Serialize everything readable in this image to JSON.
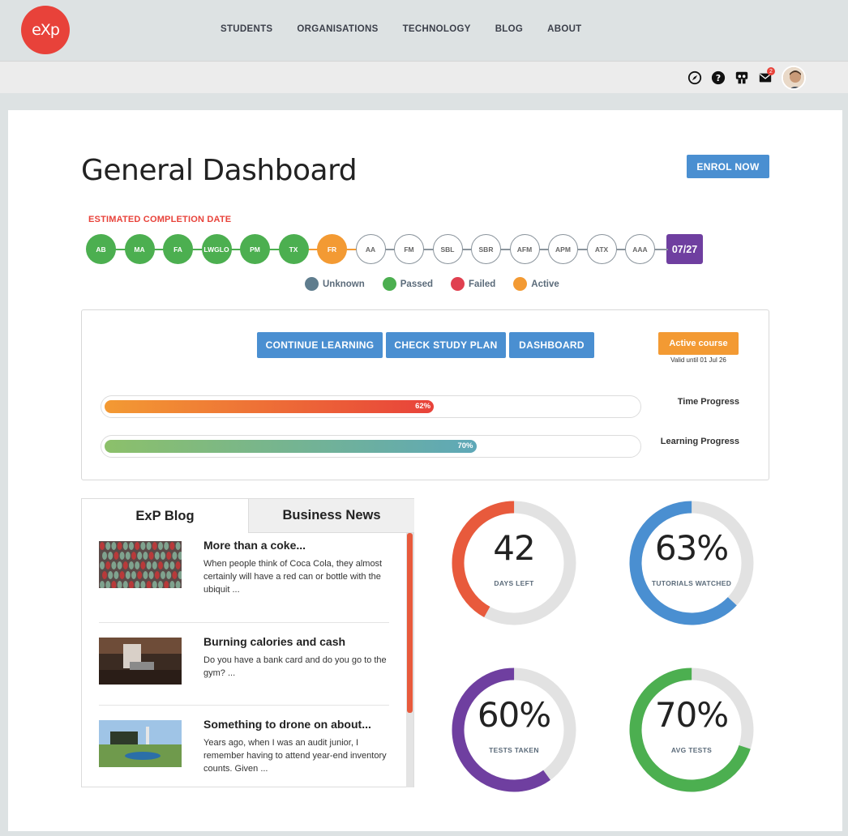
{
  "brand": {
    "logo_text": "eXp",
    "color": "#e8423a"
  },
  "nav": {
    "links": [
      "STUDENTS",
      "ORGANISATIONS",
      "TECHNOLOGY",
      "BLOG",
      "ABOUT"
    ]
  },
  "toolbar": {
    "icons": [
      "compass-icon",
      "help-icon",
      "slideshare-icon",
      "mail-icon"
    ],
    "mail_count": "2"
  },
  "page": {
    "title": "General Dashboard",
    "enrol_label": "ENROL NOW"
  },
  "completion": {
    "label": "ESTIMATED COMPLETION DATE",
    "date": "07/27",
    "modules": [
      {
        "code": "AB",
        "status": "passed"
      },
      {
        "code": "MA",
        "status": "passed"
      },
      {
        "code": "FA",
        "status": "passed"
      },
      {
        "code": "LWGLO",
        "status": "passed"
      },
      {
        "code": "PM",
        "status": "passed"
      },
      {
        "code": "TX",
        "status": "passed"
      },
      {
        "code": "FR",
        "status": "active"
      },
      {
        "code": "AA",
        "status": "unknown"
      },
      {
        "code": "FM",
        "status": "unknown"
      },
      {
        "code": "SBL",
        "status": "unknown"
      },
      {
        "code": "SBR",
        "status": "unknown"
      },
      {
        "code": "AFM",
        "status": "unknown"
      },
      {
        "code": "APM",
        "status": "unknown"
      },
      {
        "code": "ATX",
        "status": "unknown"
      },
      {
        "code": "AAA",
        "status": "unknown"
      }
    ],
    "legend": [
      {
        "label": "Unknown",
        "color": "#5f7d8e"
      },
      {
        "label": "Passed",
        "color": "#4caf50"
      },
      {
        "label": "Failed",
        "color": "#e04050"
      },
      {
        "label": "Active",
        "color": "#f39a33"
      }
    ]
  },
  "actions": {
    "continue": "CONTINUE LEARNING",
    "study_plan": "CHECK STUDY PLAN",
    "dashboard": "DASHBOARD",
    "course_status": "Active course",
    "valid_until": "Valid until 01 Jul 26"
  },
  "progress": {
    "time": {
      "label": "Time Progress",
      "value": 62,
      "text": "62%"
    },
    "learning": {
      "label": "Learning Progress",
      "value": 70,
      "text": "70%"
    }
  },
  "blog": {
    "tabs": [
      "ExP Blog",
      "Business News"
    ],
    "posts": [
      {
        "title": "More than a coke...",
        "excerpt": "When people think of Coca Cola, they almost certainly will have a red can or bottle with the ubiquit ..."
      },
      {
        "title": "Burning calories and cash",
        "excerpt": "Do you have a bank card and do you go to the gym? ..."
      },
      {
        "title": "Something to drone on about...",
        "excerpt": "Years ago, when I was an audit junior, I remember having to attend year-end inventory counts. Given ..."
      }
    ]
  },
  "stats": [
    {
      "value": "42",
      "label": "DAYS LEFT",
      "fraction": 0.42,
      "color": "#e85a3c"
    },
    {
      "value": "63%",
      "label": "TUTORIALS WATCHED",
      "fraction": 0.63,
      "color": "#4a8fd1"
    },
    {
      "value": "60%",
      "label": "TESTS TAKEN",
      "fraction": 0.6,
      "color": "#6f3fa0"
    },
    {
      "value": "70%",
      "label": "AVG TESTS",
      "fraction": 0.7,
      "color": "#4caf50"
    }
  ]
}
